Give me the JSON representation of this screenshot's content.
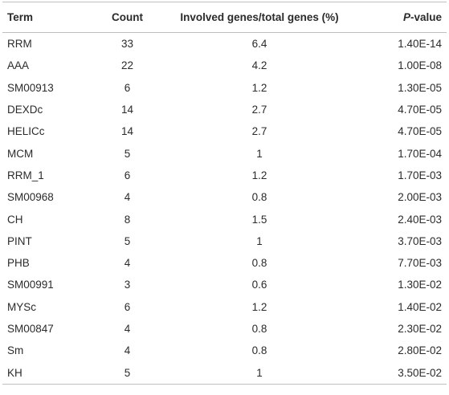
{
  "table": {
    "header": [
      "Term",
      "Count",
      "Involved genes/total genes (%)",
      "P-value"
    ],
    "rows": [
      [
        "RRM",
        33,
        6.4,
        "1.40E-14"
      ],
      [
        "AAA",
        22,
        4.2,
        "1.00E-08"
      ],
      [
        "SM00913",
        6,
        1.2,
        "1.30E-05"
      ],
      [
        "DEXDc",
        14,
        2.7,
        "4.70E-05"
      ],
      [
        "HELICc",
        14,
        2.7,
        "4.70E-05"
      ],
      [
        "MCM",
        5,
        1,
        "1.70E-04"
      ],
      [
        "RRM_1",
        6,
        1.2,
        "1.70E-03"
      ],
      [
        "SM00968",
        4,
        0.8,
        "2.00E-03"
      ],
      [
        "CH",
        8,
        1.5,
        "2.40E-03"
      ],
      [
        "PINT",
        5,
        1,
        "3.70E-03"
      ],
      [
        "PHB",
        4,
        0.8,
        "7.70E-03"
      ],
      [
        "SM00991",
        3,
        0.6,
        "1.30E-02"
      ],
      [
        "MYSc",
        6,
        1.2,
        "1.40E-02"
      ],
      [
        "SM00847",
        4,
        0.8,
        "2.30E-02"
      ],
      [
        "Sm",
        4,
        0.8,
        "2.80E-02"
      ],
      [
        "KH",
        5,
        1,
        "3.50E-02"
      ]
    ]
  }
}
